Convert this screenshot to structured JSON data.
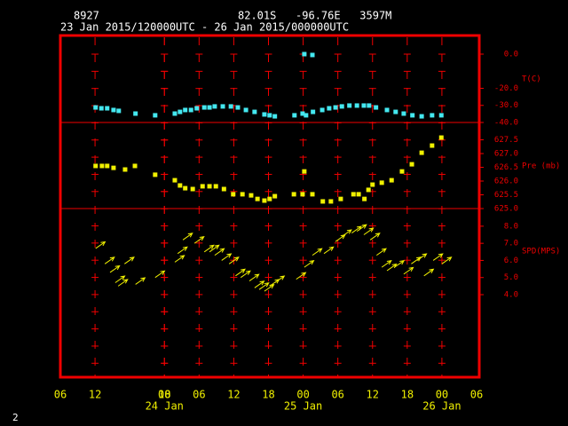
{
  "header": {
    "station": "8927",
    "location": "82.01S   -96.76E   3597M",
    "period": "23 Jan 2015/120000UTC - 26 Jan 2015/000000UTC",
    "page": "2"
  },
  "x_axis": {
    "xlim": [
      0,
      72
    ],
    "xticks": [
      {
        "value": 0,
        "label": "06"
      },
      {
        "value": 6,
        "label": "12"
      },
      18,
      {
        "value": 18,
        "label": "00"
      },
      {
        "value": 24,
        "label": "06"
      },
      {
        "value": 30,
        "label": "12"
      },
      {
        "value": 36,
        "label": "18"
      },
      {
        "value": 42,
        "label": "00"
      },
      {
        "value": 48,
        "label": "06"
      },
      {
        "value": 54,
        "label": "12"
      },
      {
        "value": 60,
        "label": "18"
      },
      {
        "value": 66,
        "label": "00"
      },
      {
        "value": 72,
        "label": "06"
      }
    ],
    "date_labels": [
      {
        "value": 18,
        "label": "24 Jan"
      },
      {
        "value": 42,
        "label": "25 Jan"
      },
      {
        "value": 66,
        "label": "26 Jan"
      }
    ]
  },
  "chart_data": [
    {
      "type": "scatter",
      "y_label": "T(C)",
      "color": "#44e8f0",
      "ylim": [
        -40,
        10.9
      ],
      "yticks": [
        {
          "value": 0,
          "label": "0.0"
        },
        {
          "value": -20,
          "label": "-20.0"
        },
        {
          "value": -30,
          "label": "-30.0"
        },
        {
          "value": -40,
          "label": "-40.0"
        }
      ],
      "x": [
        6.1,
        7.1,
        8.1,
        9.2,
        10.1,
        13.0,
        16.4,
        19.8,
        20.7,
        21.6,
        22.6,
        23.6,
        24.9,
        25.8,
        26.7,
        28.1,
        29.5,
        30.7,
        32.1,
        33.6,
        35.3,
        36.2,
        37.1,
        40.5,
        41.9,
        42.2,
        42.5,
        43.6,
        43.7,
        45.3,
        46.5,
        47.6,
        48.7,
        50.0,
        51.3,
        52.5,
        53.4,
        54.6,
        56.5,
        58.0,
        59.4,
        60.9,
        62.5,
        64.3,
        65.9
      ],
      "values": [
        -31.2,
        -31.7,
        -31.7,
        -32.7,
        -33.2,
        -34.8,
        -35.8,
        -34.8,
        -33.8,
        -32.7,
        -32.7,
        -31.7,
        -31.2,
        -31.2,
        -30.6,
        -30.6,
        -30.6,
        -31.2,
        -32.7,
        -33.8,
        -35.3,
        -35.8,
        -36.4,
        -35.8,
        -34.8,
        0,
        -35.8,
        -0.5,
        -33.8,
        -32.7,
        -31.7,
        -31.2,
        -30.6,
        -30.1,
        -30.1,
        -30.1,
        -30.1,
        -31.2,
        -32.7,
        -33.8,
        -34.8,
        -35.8,
        -36.4,
        -35.8,
        -35.8
      ]
    },
    {
      "type": "scatter",
      "y_label": "Pre (mb)",
      "color": "#f0f000",
      "ylim": [
        625,
        628.13
      ],
      "yticks": [
        {
          "value": 627.5,
          "label": "627.5"
        },
        {
          "value": 627,
          "label": "627.0"
        },
        {
          "value": 626.5,
          "label": "626.5"
        },
        {
          "value": 626,
          "label": "626.0"
        },
        {
          "value": 625.5,
          "label": "625.5"
        },
        {
          "value": 625,
          "label": "625.0"
        }
      ],
      "x": [
        6.1,
        7.2,
        8.1,
        9.2,
        11.2,
        12.9,
        16.4,
        19.8,
        20.7,
        21.6,
        22.9,
        24.6,
        25.8,
        26.9,
        28.3,
        29.9,
        31.5,
        33.0,
        34.1,
        35.3,
        36.2,
        37.1,
        40.4,
        41.9,
        42.2,
        43.6,
        45.4,
        46.8,
        48.5,
        50.7,
        51.6,
        52.6,
        53.3,
        54.0,
        55.6,
        57.3,
        59.1,
        60.8,
        62.5,
        64.3,
        65.9
      ],
      "values": [
        626.55,
        626.55,
        626.55,
        626.48,
        626.42,
        626.55,
        626.23,
        626.03,
        625.84,
        625.74,
        625.71,
        625.81,
        625.81,
        625.81,
        625.71,
        625.52,
        625.52,
        625.48,
        625.35,
        625.29,
        625.35,
        625.45,
        625.52,
        625.52,
        626.35,
        625.52,
        625.26,
        625.26,
        625.35,
        625.52,
        625.52,
        625.35,
        625.68,
        625.87,
        625.94,
        626.03,
        626.35,
        626.61,
        627.03,
        627.29,
        627.58
      ]
    },
    {
      "type": "wind",
      "y_label": "SPD(MPS)",
      "color": "#f0f000",
      "ylim": [
        4,
        9.03
      ],
      "yticks": [
        {
          "value": 8,
          "label": "8.0"
        },
        {
          "value": 7,
          "label": "7.0"
        },
        {
          "value": 6,
          "label": "6.0"
        },
        {
          "value": 5,
          "label": "5.0"
        },
        {
          "value": 4,
          "label": "4.0"
        }
      ],
      "x": [
        6.1,
        7.7,
        8.6,
        9.5,
        10.0,
        11.1,
        13.0,
        16.4,
        19.8,
        20.3,
        21.2,
        23.2,
        24.9,
        25.8,
        26.7,
        27.9,
        29.2,
        30.3,
        31.2,
        32.7,
        33.6,
        34.4,
        35.3,
        36.2,
        37.1,
        40.8,
        42.2,
        43.6,
        45.6,
        47.6,
        48.7,
        50.4,
        51.3,
        52.5,
        53.6,
        54.7,
        55.6,
        56.5,
        57.8,
        59.4,
        60.7,
        61.7,
        62.9,
        64.5,
        66.0
      ],
      "values": [
        6.7,
        5.8,
        5.3,
        4.7,
        4.5,
        5.8,
        4.6,
        5.0,
        5.9,
        6.4,
        7.2,
        7.0,
        6.5,
        6.5,
        6.3,
        6.0,
        5.8,
        5.1,
        5.0,
        4.8,
        4.4,
        4.3,
        4.2,
        4.5,
        4.7,
        4.9,
        5.6,
        6.3,
        6.4,
        7.1,
        7.4,
        7.6,
        7.7,
        7.5,
        7.2,
        6.3,
        5.6,
        5.4,
        5.6,
        5.2,
        5.8,
        6.0,
        5.1,
        6.0,
        5.8
      ]
    }
  ]
}
